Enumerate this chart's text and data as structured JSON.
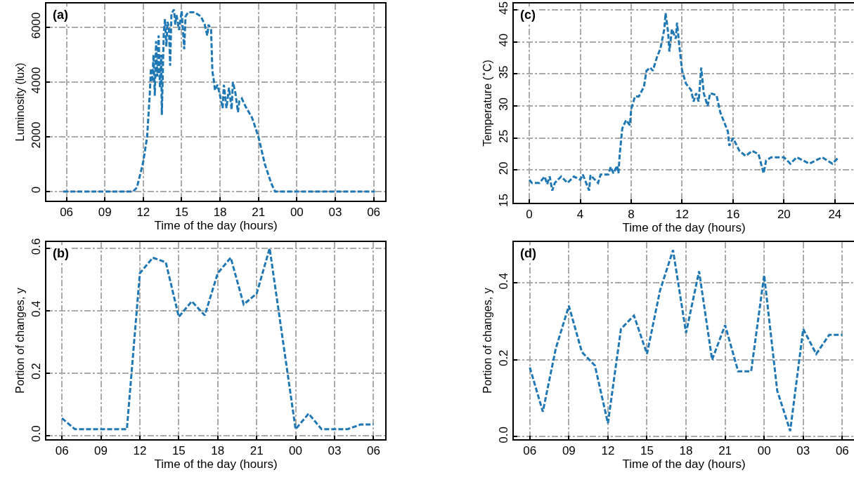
{
  "chart_data": [
    {
      "type": "line",
      "xlabel": "Time of the day (hours)",
      "ylabel": "Luminosity (lux)",
      "annotations": [
        "(a)"
      ],
      "grid": true,
      "line_style": "dashed",
      "x": [
        5.75,
        8,
        10,
        11.2,
        11.5,
        11.8,
        12,
        12.3,
        12.5,
        12.6,
        12.7,
        12.8,
        12.9,
        13.0,
        13.1,
        13.2,
        13.3,
        13.4,
        13.45,
        13.6,
        13.7,
        13.8,
        13.9,
        14.0,
        14.1,
        14.2,
        14.4,
        14.5,
        14.6,
        14.8,
        15.0,
        15.2,
        15.3,
        15.5,
        16,
        16.5,
        16.8,
        17.0,
        17.1,
        17.3,
        17.4,
        17.5,
        17.6,
        17.8,
        18.0,
        18.2,
        18.3,
        18.5,
        18.7,
        18.9,
        19.0,
        19.2,
        19.4,
        19.5,
        19.7,
        20,
        20.5,
        21,
        21.5,
        22,
        22.3,
        26,
        30.1
      ],
      "series": [
        {
          "color": "#1f77b4",
          "values": [
            0,
            0,
            0,
            0,
            150,
            700,
            1100,
            2000,
            3500,
            4500,
            4000,
            5000,
            3500,
            5500,
            4200,
            5700,
            3800,
            5000,
            2800,
            5800,
            6300,
            5300,
            6200,
            6000,
            4600,
            6500,
            6650,
            6100,
            6450,
            5900,
            6600,
            5200,
            6400,
            6550,
            6550,
            6400,
            6100,
            5700,
            6100,
            5900,
            4400,
            4100,
            3700,
            3900,
            3500,
            3050,
            3900,
            3050,
            3800,
            3000,
            4000,
            3600,
            2900,
            3300,
            3400,
            3100,
            2700,
            2000,
            1000,
            300,
            0,
            0,
            0
          ]
        }
      ],
      "xlim": [
        4.43,
        30.9
      ],
      "xticks": [
        {
          "value": 6,
          "label": "06"
        },
        {
          "value": 9,
          "label": "09"
        },
        12,
        15,
        18,
        21,
        {
          "value": 24,
          "label": "00"
        },
        {
          "value": 27,
          "label": "03"
        },
        {
          "value": 30,
          "label": "06"
        }
      ],
      "ylim": [
        -330,
        6870
      ],
      "yticks": [
        0,
        2000,
        4000,
        6000
      ]
    },
    {
      "type": "line",
      "xlabel": "Time of the day (hours)",
      "ylabel": "Portion of changes, y",
      "annotations": [
        "(b)"
      ],
      "grid": true,
      "line_style": "dashed",
      "x": [
        6,
        7,
        8,
        9,
        10,
        11,
        12,
        13,
        14,
        15,
        16,
        17,
        18,
        19,
        20,
        21,
        22,
        23,
        24,
        25,
        26,
        27,
        28,
        29,
        30
      ],
      "series": [
        {
          "color": "#1f77b4",
          "values": [
            0.055,
            0.02,
            0.02,
            0.02,
            0.02,
            0.02,
            0.52,
            0.57,
            0.555,
            0.38,
            0.43,
            0.385,
            0.52,
            0.57,
            0.42,
            0.455,
            0.6,
            0.31,
            0.02,
            0.07,
            0.02,
            0.02,
            0.02,
            0.035,
            0.035
          ]
        }
      ],
      "xlim": [
        4.8,
        30.9
      ],
      "xticks": [
        {
          "value": 6,
          "label": "06"
        },
        {
          "value": 9,
          "label": "09"
        },
        12,
        15,
        18,
        21,
        {
          "value": 24,
          "label": "00"
        },
        {
          "value": 27,
          "label": "03"
        },
        {
          "value": 30,
          "label": "06"
        }
      ],
      "ylim": [
        -0.012,
        0.62
      ],
      "yticks": [
        {
          "value": 0,
          "label": "0.0"
        },
        0.2,
        0.4,
        0.6
      ]
    },
    {
      "type": "line",
      "xlabel": "Time of the day (hours)",
      "ylabel": "Temperature ($^{∘}$C)",
      "annotations": [
        "(c)"
      ],
      "grid": true,
      "line_style": "dashed",
      "x": [
        0,
        0.2,
        0.8,
        1.2,
        1.4,
        1.6,
        1.8,
        2,
        2.5,
        3,
        3.5,
        4,
        4.2,
        4.7,
        4.8,
        5.4,
        5.6,
        6.2,
        6.4,
        6.6,
        6.9,
        7.0,
        7.1,
        7.3,
        7.6,
        7.9,
        8,
        8.3,
        8.6,
        9,
        9.2,
        9.5,
        9.7,
        10,
        10.3,
        10.6,
        10.7,
        10.9,
        11.0,
        11.2,
        11.5,
        11.6,
        11.8,
        12,
        12.3,
        12.7,
        12.9,
        13.1,
        13.3,
        13.5,
        13.7,
        14,
        14.2,
        14.7,
        15,
        15.4,
        15.6,
        15.7,
        16,
        16.5,
        17,
        17.5,
        18,
        18.4,
        18.6,
        19,
        20,
        20.5,
        21,
        22,
        23,
        23.8,
        24.3
      ],
      "series": [
        {
          "color": "#1f77b4",
          "values": [
            18.5,
            18,
            18,
            19,
            17.8,
            19,
            16.8,
            18,
            19,
            18,
            19,
            18.5,
            19.3,
            16.8,
            19.2,
            18,
            19.3,
            19.3,
            20.5,
            19.5,
            20.7,
            19.5,
            22.5,
            26.5,
            27.8,
            27,
            29.5,
            31.5,
            31.5,
            33,
            35.5,
            36,
            35.5,
            37.5,
            39,
            42,
            44.5,
            41.5,
            38.5,
            42,
            40.5,
            43,
            39,
            35.5,
            33.5,
            32.5,
            30.7,
            32,
            30.7,
            36,
            32,
            30,
            32,
            31.7,
            29,
            27,
            26,
            23.8,
            25,
            23,
            22.2,
            23,
            22.5,
            19.5,
            21.5,
            22,
            22,
            21,
            22,
            21,
            22,
            21,
            22
          ]
        }
      ],
      "xlim": [
        -1.22,
        25.5
      ],
      "xticks": [
        0,
        4,
        8,
        12,
        16,
        20,
        24
      ],
      "ylim": [
        14.9,
        46
      ],
      "yticks": [
        15,
        20,
        25,
        30,
        35,
        40,
        45
      ]
    },
    {
      "type": "line",
      "xlabel": "Time of the day (hours)",
      "ylabel": "Portion of changes, y",
      "annotations": [
        "(d)"
      ],
      "grid": true,
      "line_style": "dashed",
      "x": [
        6,
        7,
        8,
        9,
        10,
        11,
        12,
        13,
        14,
        15,
        16,
        17,
        18,
        19,
        20,
        21,
        22,
        23,
        24,
        25,
        26,
        27,
        28,
        29,
        30
      ],
      "series": [
        {
          "color": "#1f77b4",
          "values": [
            0.18,
            0.065,
            0.23,
            0.34,
            0.22,
            0.185,
            0.035,
            0.28,
            0.315,
            0.215,
            0.38,
            0.485,
            0.27,
            0.43,
            0.2,
            0.29,
            0.17,
            0.17,
            0.42,
            0.12,
            0.015,
            0.28,
            0.215,
            0.265,
            0.265
          ]
        }
      ],
      "xlim": [
        4.77,
        30.9
      ],
      "xticks": [
        {
          "value": 6,
          "label": "06"
        },
        {
          "value": 9,
          "label": "09"
        },
        12,
        15,
        18,
        21,
        {
          "value": 24,
          "label": "00"
        },
        {
          "value": 27,
          "label": "03"
        },
        {
          "value": 30,
          "label": "06"
        }
      ],
      "ylim": [
        -0.0065,
        0.506
      ],
      "yticks": [
        {
          "value": 0,
          "label": "0.0"
        },
        0.2,
        0.4
      ]
    }
  ]
}
